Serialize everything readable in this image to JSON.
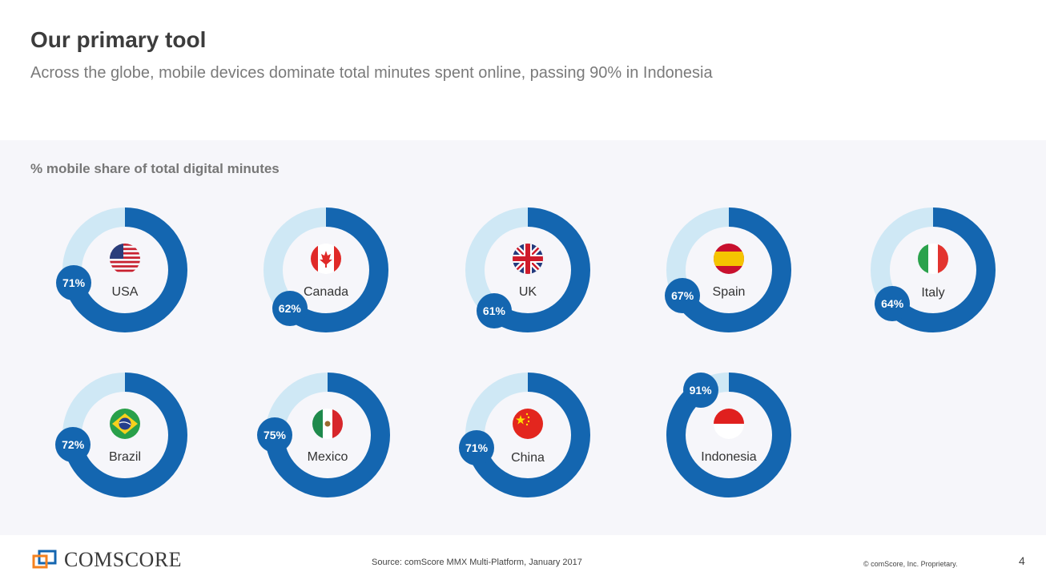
{
  "header": {
    "title": "Our primary tool",
    "subtitle": "Across the globe, mobile devices dominate total minutes spent online, passing 90% in Indonesia"
  },
  "colors": {
    "mobile": "#1466b0",
    "remainder": "#cfe8f5",
    "panel": "#f6f6fa"
  },
  "chart_data": {
    "type": "pie",
    "title": "% mobile share of total digital minutes",
    "series": [
      {
        "name": "mobile",
        "categories": [
          "USA",
          "Canada",
          "UK",
          "Spain",
          "Italy",
          "Brazil",
          "Mexico",
          "China",
          "Indonesia"
        ],
        "values": [
          71,
          62,
          61,
          67,
          64,
          72,
          75,
          71,
          91
        ],
        "labels": [
          "71%",
          "62%",
          "61%",
          "67%",
          "64%",
          "72%",
          "75%",
          "71%",
          "91%"
        ]
      }
    ],
    "flags": [
      "usa-flag-icon",
      "canada-flag-icon",
      "uk-flag-icon",
      "spain-flag-icon",
      "italy-flag-icon",
      "brazil-flag-icon",
      "mexico-flag-icon",
      "china-flag-icon",
      "indonesia-flag-icon"
    ]
  },
  "footer": {
    "logo_text": "COMSCORE",
    "source": "Source: comScore MMX Multi-Platform, January 2017",
    "copyright": "© comScore, Inc. Proprietary.",
    "page_number": "4"
  }
}
